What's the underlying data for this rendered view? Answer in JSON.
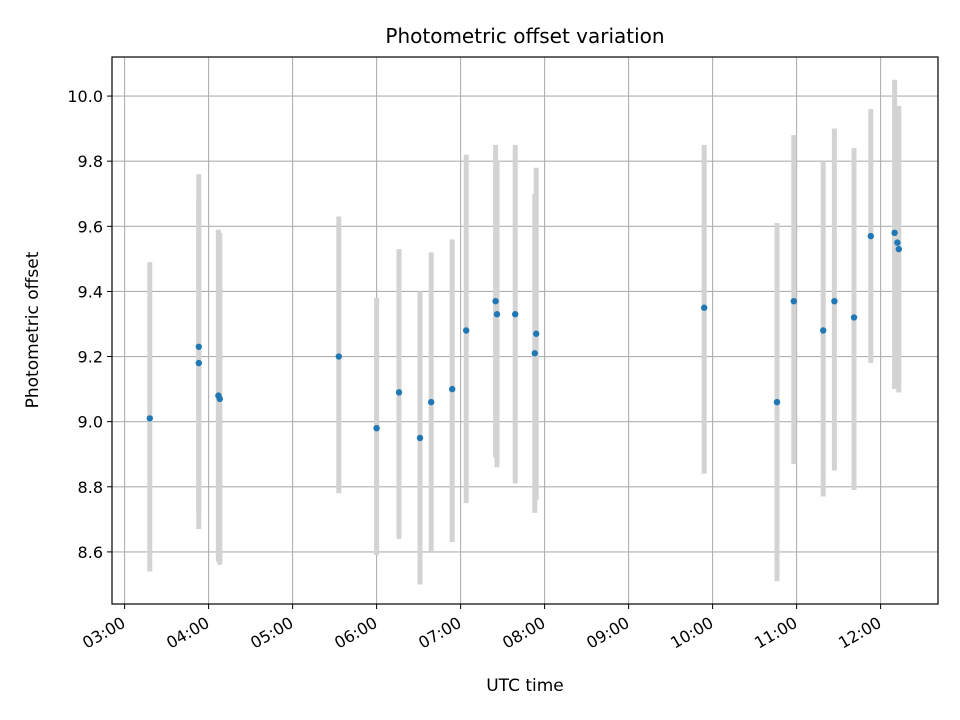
{
  "chart_data": {
    "type": "scatter",
    "title": "Photometric offset variation",
    "xlabel": "UTC time",
    "ylabel": "Photometric offset",
    "x_unit": "UTC time (HH:MM)",
    "xlim": [
      "02:51",
      "12:41"
    ],
    "ylim": [
      8.44,
      10.12
    ],
    "x_ticks": [
      "03:00",
      "04:00",
      "05:00",
      "06:00",
      "07:00",
      "08:00",
      "09:00",
      "10:00",
      "11:00",
      "12:00"
    ],
    "y_ticks": [
      "8.6",
      "8.8",
      "9.0",
      "9.2",
      "9.4",
      "9.6",
      "9.8",
      "10.0"
    ],
    "grid": true,
    "series": [
      {
        "marker_color": "#1f77b4",
        "errorbar_color": "#d3d3d3",
        "points": [
          {
            "x": "03:18",
            "y": 9.01,
            "low": 8.54,
            "high": 9.49
          },
          {
            "x": "03:53",
            "y": 9.23,
            "low": 8.71,
            "high": 9.76
          },
          {
            "x": "03:53",
            "y": 9.18,
            "low": 8.67,
            "high": 9.69
          },
          {
            "x": "04:07",
            "y": 9.08,
            "low": 8.57,
            "high": 9.59
          },
          {
            "x": "04:08",
            "y": 9.07,
            "low": 8.56,
            "high": 9.58
          },
          {
            "x": "05:33",
            "y": 9.2,
            "low": 8.78,
            "high": 9.63
          },
          {
            "x": "06:00",
            "y": 8.98,
            "low": 8.59,
            "high": 9.38
          },
          {
            "x": "06:16",
            "y": 9.09,
            "low": 8.64,
            "high": 9.53
          },
          {
            "x": "06:31",
            "y": 8.95,
            "low": 8.5,
            "high": 9.4
          },
          {
            "x": "06:39",
            "y": 9.06,
            "low": 8.6,
            "high": 9.52
          },
          {
            "x": "06:54",
            "y": 9.1,
            "low": 8.63,
            "high": 9.56
          },
          {
            "x": "07:04",
            "y": 9.28,
            "low": 8.75,
            "high": 9.82
          },
          {
            "x": "07:25",
            "y": 9.37,
            "low": 8.89,
            "high": 9.85
          },
          {
            "x": "07:26",
            "y": 9.33,
            "low": 8.86,
            "high": 9.8
          },
          {
            "x": "07:39",
            "y": 9.33,
            "low": 8.81,
            "high": 9.85
          },
          {
            "x": "07:53",
            "y": 9.21,
            "low": 8.72,
            "high": 9.7
          },
          {
            "x": "07:54",
            "y": 9.27,
            "low": 8.76,
            "high": 9.78
          },
          {
            "x": "09:54",
            "y": 9.35,
            "low": 8.84,
            "high": 9.85
          },
          {
            "x": "10:46",
            "y": 9.06,
            "low": 8.51,
            "high": 9.61
          },
          {
            "x": "10:58",
            "y": 9.37,
            "low": 8.87,
            "high": 9.88
          },
          {
            "x": "11:19",
            "y": 9.28,
            "low": 8.77,
            "high": 9.8
          },
          {
            "x": "11:27",
            "y": 9.37,
            "low": 8.85,
            "high": 9.9
          },
          {
            "x": "11:41",
            "y": 9.32,
            "low": 8.79,
            "high": 9.84
          },
          {
            "x": "11:53",
            "y": 9.57,
            "low": 9.18,
            "high": 9.96
          },
          {
            "x": "12:10",
            "y": 9.58,
            "low": 9.1,
            "high": 10.05
          },
          {
            "x": "12:12",
            "y": 9.55,
            "low": 9.15,
            "high": 9.94
          },
          {
            "x": "12:13",
            "y": 9.53,
            "low": 9.09,
            "high": 9.97
          }
        ]
      }
    ]
  }
}
